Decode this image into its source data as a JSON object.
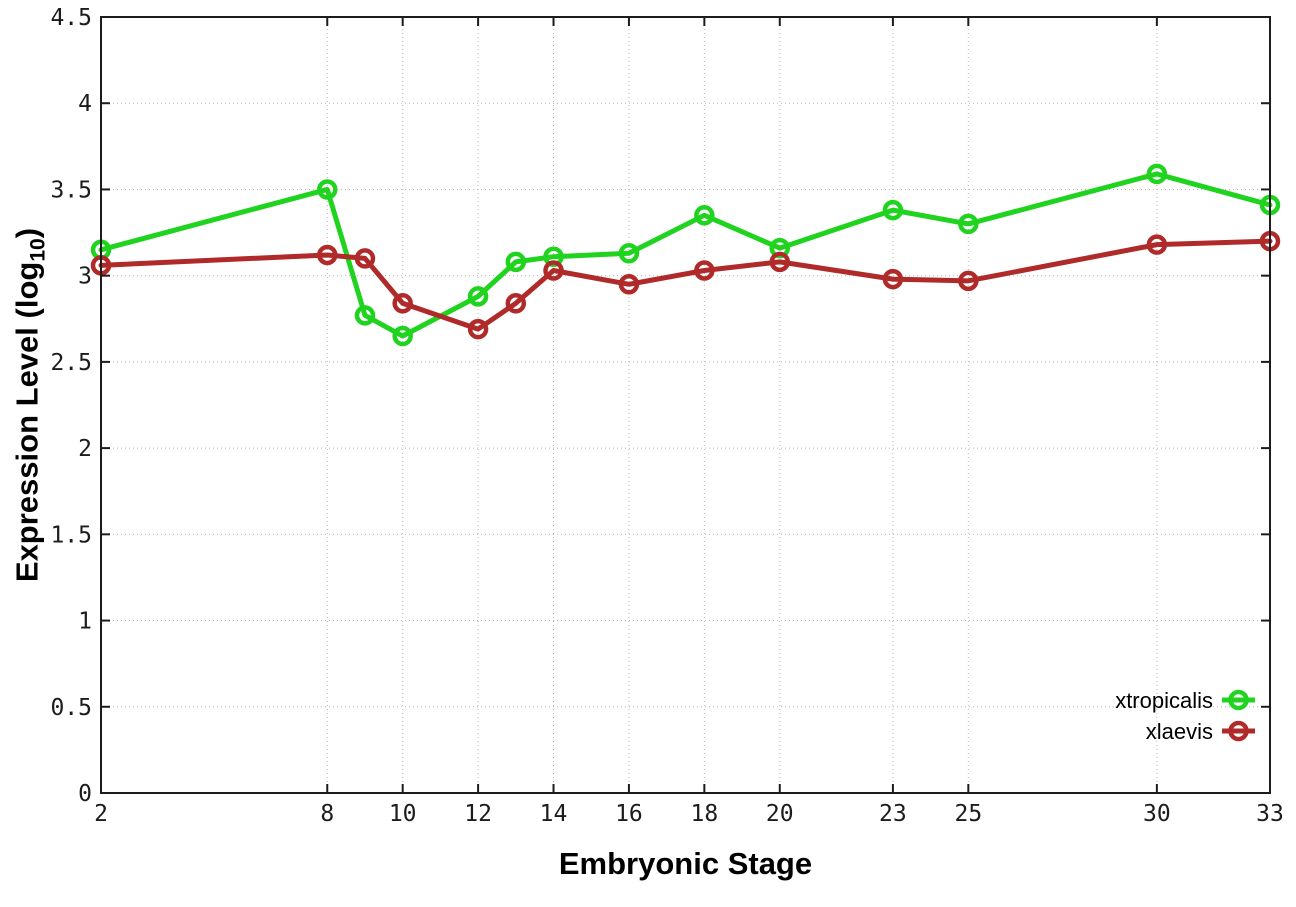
{
  "chart_data": {
    "type": "line",
    "title": "",
    "xlabel": "Embryonic Stage",
    "ylabel": {
      "prefix": "Expression Level (log",
      "sub": "10",
      "suffix": ")"
    },
    "x": [
      2,
      8,
      9,
      10,
      12,
      13,
      14,
      16,
      18,
      20,
      23,
      25,
      30,
      33
    ],
    "series": [
      {
        "name": "xtropicalis",
        "color": "#1fd31f",
        "values": [
          3.15,
          3.5,
          2.77,
          2.65,
          2.88,
          3.08,
          3.11,
          3.13,
          3.35,
          3.16,
          3.38,
          3.3,
          3.59,
          3.41
        ]
      },
      {
        "name": "xlaevis",
        "color": "#b02a2a",
        "values": [
          3.06,
          3.12,
          3.1,
          2.84,
          2.69,
          2.84,
          3.03,
          2.95,
          3.03,
          3.08,
          2.98,
          2.97,
          3.18,
          3.2
        ]
      }
    ],
    "xlim": [
      2,
      33
    ],
    "ylim": [
      0,
      4.5
    ],
    "x_ticks": [
      2,
      8,
      10,
      12,
      14,
      16,
      18,
      20,
      23,
      25,
      30,
      33
    ],
    "x_tick_labels": [
      "2",
      "8",
      "10",
      "12",
      "14",
      "16",
      "18",
      "20",
      "23",
      "25",
      "30",
      "33"
    ],
    "y_ticks": [
      0,
      0.5,
      1,
      1.5,
      2,
      2.5,
      3,
      3.5,
      4,
      4.5
    ],
    "y_tick_labels": [
      "0",
      "0.5",
      "1",
      "1.5",
      "2",
      "2.5",
      "3",
      "3.5",
      "4",
      "4.5"
    ],
    "grid": true,
    "grid_style": "dotted",
    "legend_position": "bottom-right",
    "marker": "open-circle",
    "colors": {
      "grid": "#b8b8b8",
      "axis": "#1c1c1c",
      "background": "#ffffff",
      "text": "#000000"
    }
  }
}
